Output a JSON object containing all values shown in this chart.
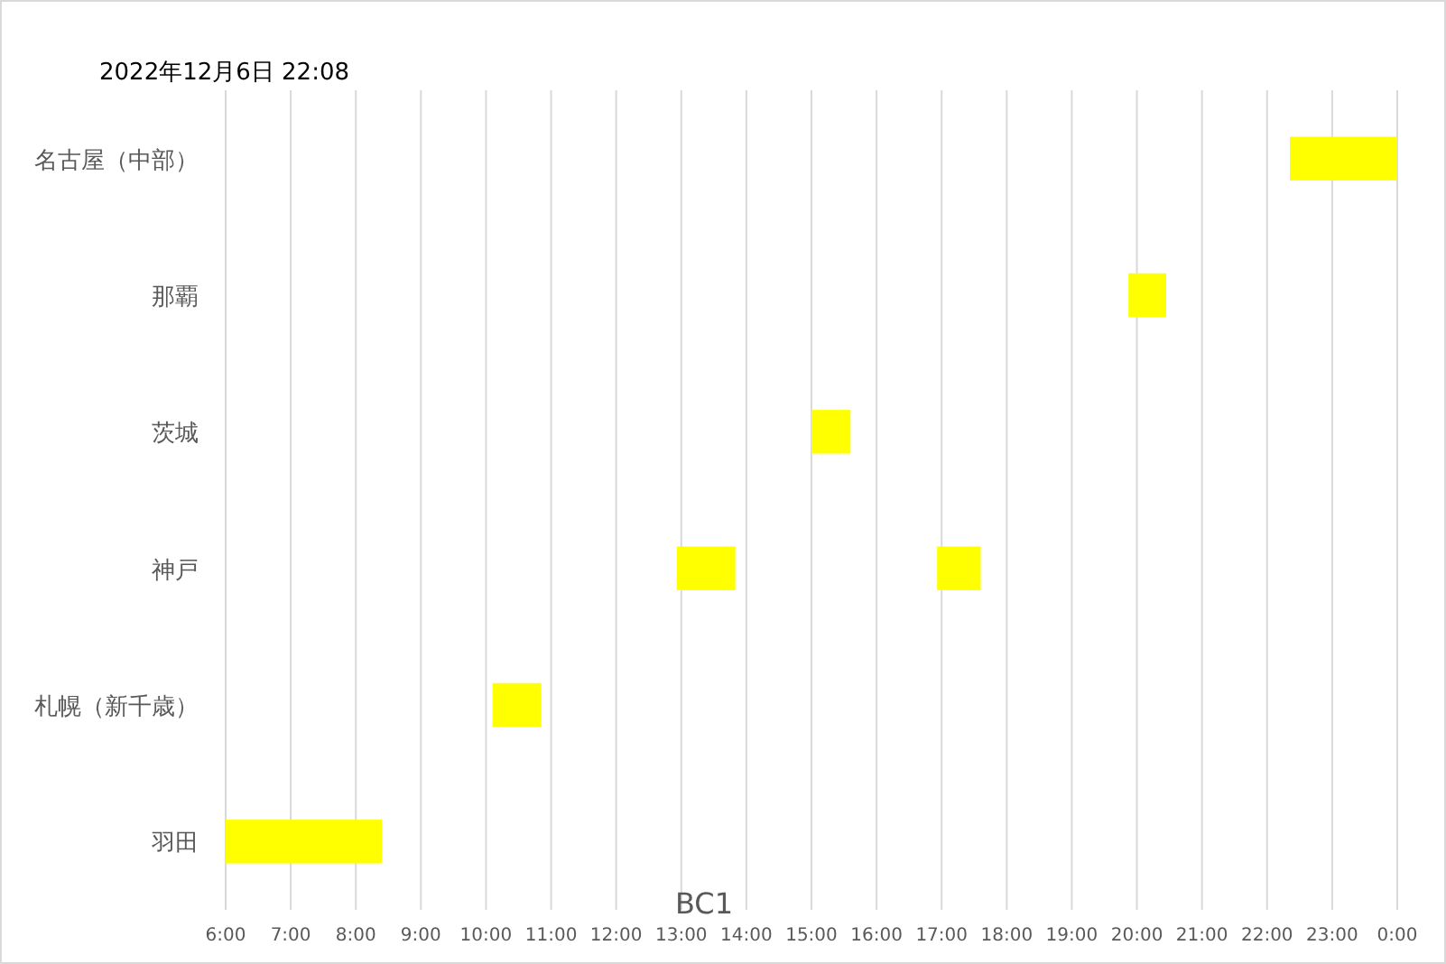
{
  "chart_data": {
    "type": "bar",
    "orientation": "horizontal",
    "title": "2022年12月6日 22:08",
    "annotations": [
      "BC1"
    ],
    "categories": [
      "名古屋（中部）",
      "那覇",
      "茨城",
      "神戸",
      "札幌（新千歳）",
      "羽田"
    ],
    "series": [
      {
        "color": "#ffff00",
        "base": [
          22.35,
          19.87,
          15.0,
          12.93,
          10.1,
          6.0
        ],
        "values": [
          1.65,
          0.58,
          0.6,
          0.9,
          0.75,
          2.4
        ]
      },
      {
        "color": "#ffff00",
        "base": [
          null,
          null,
          null,
          16.93,
          null,
          null
        ],
        "values": [
          null,
          null,
          null,
          0.67,
          null,
          null
        ]
      }
    ],
    "xlim": [
      6,
      24
    ],
    "xticks": [
      {
        "value": 6,
        "label": "6:00"
      },
      {
        "value": 7,
        "label": "7:00"
      },
      {
        "value": 8,
        "label": "8:00"
      },
      {
        "value": 9,
        "label": "9:00"
      },
      {
        "value": 10,
        "label": "10:00"
      },
      {
        "value": 11,
        "label": "11:00"
      },
      {
        "value": 12,
        "label": "12:00"
      },
      {
        "value": 13,
        "label": "13:00"
      },
      {
        "value": 14,
        "label": "14:00"
      },
      {
        "value": 15,
        "label": "15:00"
      },
      {
        "value": 16,
        "label": "16:00"
      },
      {
        "value": 17,
        "label": "17:00"
      },
      {
        "value": 18,
        "label": "18:00"
      },
      {
        "value": 19,
        "label": "19:00"
      },
      {
        "value": 20,
        "label": "20:00"
      },
      {
        "value": 21,
        "label": "21:00"
      },
      {
        "value": 22,
        "label": "22:00"
      },
      {
        "value": 23,
        "label": "23:00"
      },
      {
        "value": 24,
        "label": "0:00"
      }
    ],
    "grid": "x"
  }
}
